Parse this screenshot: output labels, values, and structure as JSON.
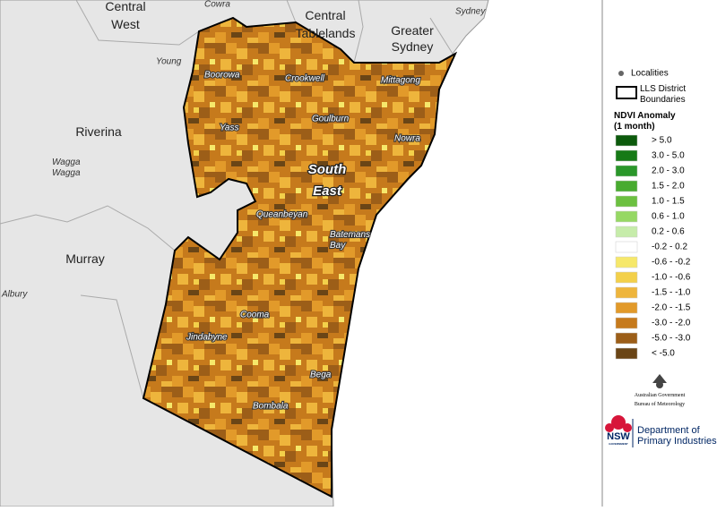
{
  "regions": [
    [
      "Central",
      "West"
    ],
    [
      "Central",
      "Tablelands"
    ],
    [
      "Greater",
      "Sydney"
    ],
    [
      "Riverina"
    ],
    [
      "Murray"
    ],
    [
      "South",
      "East"
    ]
  ],
  "localities": [
    "Cowra",
    "Sydney",
    "Young",
    [
      "Wagga",
      "Wagga"
    ],
    "Albury",
    "Boorowa",
    "Crookwell",
    "Mittagong",
    "Yass",
    "Goulburn",
    "Nowra",
    "Queanbeyan",
    [
      "Batemans",
      "Bay"
    ],
    "Cooma",
    "Jindabyne",
    "Bega",
    "Bombala"
  ],
  "legend": {
    "localities": "Localities",
    "boundaries": [
      "LLS District",
      "Boundaries"
    ],
    "title": [
      "NDVI Anomaly",
      "(1 month)"
    ],
    "classes": [
      {
        "label": "> 5.0",
        "color": "#0c5a0c"
      },
      {
        "label": "3.0 -  5.0",
        "color": "#167a16"
      },
      {
        "label": "2.0 -  3.0",
        "color": "#2a972a"
      },
      {
        "label": "1.5 -  2.0",
        "color": "#48ab30"
      },
      {
        "label": "1.0 -  1.5",
        "color": "#6cc040"
      },
      {
        "label": "0.6 -  1.0",
        "color": "#96d864"
      },
      {
        "label": "0.2 -  0.6",
        "color": "#c6ecaa"
      },
      {
        "label": "-0.2 -  0.2",
        "color": "#ffffff"
      },
      {
        "label": "-0.6 - -0.2",
        "color": "#f6e86a"
      },
      {
        "label": "-1.0 - -0.6",
        "color": "#f3d04a"
      },
      {
        "label": "-1.5 - -1.0",
        "color": "#eeb53c"
      },
      {
        "label": "-2.0 - -1.5",
        "color": "#e29a2a"
      },
      {
        "label": "-3.0 - -2.0",
        "color": "#c67a1c"
      },
      {
        "label": "-5.0 - -3.0",
        "color": "#9c5e18"
      },
      {
        "label": "< -5.0",
        "color": "#6a4516"
      }
    ]
  },
  "logos": {
    "bom": [
      "Australian Government",
      "Bureau of Meteorology"
    ],
    "nsw": [
      "NSW",
      "GOVERNMENT"
    ],
    "dpi": [
      "Department of",
      "Primary Industries"
    ]
  }
}
